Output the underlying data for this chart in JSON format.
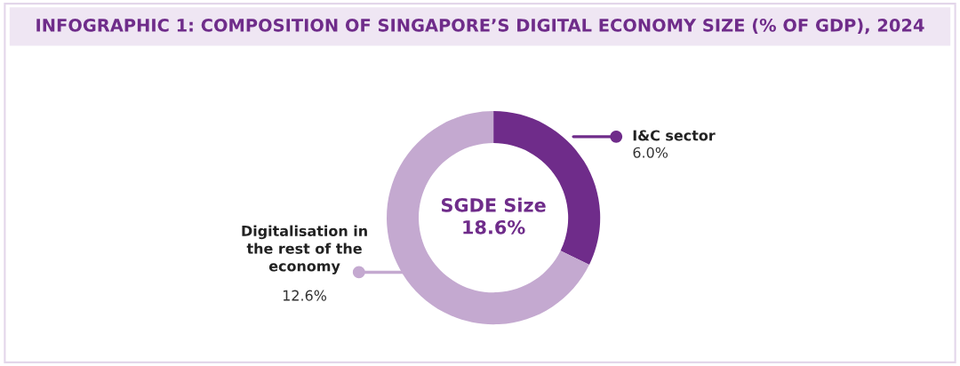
{
  "chart_data": {
    "type": "donut",
    "title": "INFOGRAPHIC 1: COMPOSITION OF SINGAPORE’S DIGITAL ECONOMY SIZE (% OF GDP), 2024",
    "categories": [
      "I&C sector",
      "Digitalisation in\nthe rest of the\neconomy"
    ],
    "values": [
      6.0,
      12.6
    ],
    "colors": [
      "#6f2c8a",
      "#c4a9d0"
    ],
    "value_labels": [
      "6.0%",
      "12.6%"
    ],
    "annotations": [
      {
        "text": "SGDE Size\n18.6%"
      }
    ]
  }
}
